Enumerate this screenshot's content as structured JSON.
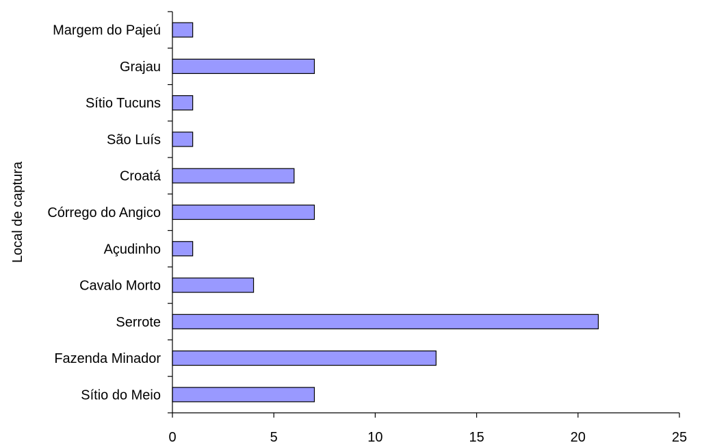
{
  "chart_data": {
    "type": "bar",
    "orientation": "horizontal",
    "title": "",
    "xlabel": "",
    "ylabel": "Local de captura",
    "xlim": [
      0,
      25
    ],
    "xticks": [
      0,
      5,
      10,
      15,
      20,
      25
    ],
    "grid": false,
    "legend": "none",
    "bar_color": "#9999ff",
    "bar_edge_color": "#000000",
    "categories": [
      "Sítio do Meio",
      "Fazenda Minador",
      "Serrote",
      "Cavalo Morto",
      "Açudinho",
      "Córrego do Angico",
      "Croatá",
      "São Luís",
      "Sítio Tucuns",
      "Grajau",
      "Margem do Pajeú"
    ],
    "values": [
      7,
      13,
      21,
      4,
      1,
      7,
      6,
      1,
      1,
      7,
      1
    ]
  }
}
